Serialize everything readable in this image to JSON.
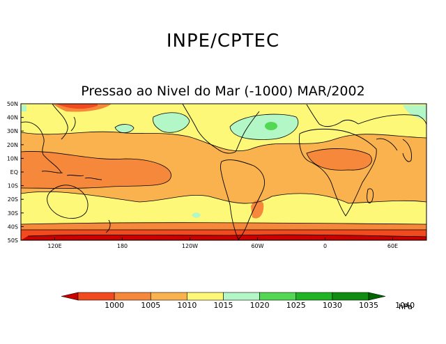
{
  "header": {
    "organization": "INPE/CPTEC",
    "map_title": "Pressao ao Nivel do Mar (-1000) MAR/2002"
  },
  "map": {
    "variable": "Sea level pressure",
    "period": "MAR/2002",
    "lat_labels": [
      "50N",
      "40N",
      "30N",
      "20N",
      "10N",
      "EQ",
      "10S",
      "20S",
      "30S",
      "40S",
      "50S"
    ],
    "lon_labels": [
      "120E",
      "180",
      "120W",
      "60W",
      "0",
      "60E"
    ]
  },
  "colorbar": {
    "unit": "hPa",
    "levels": [
      "1000",
      "1005",
      "1010",
      "1015",
      "1020",
      "1025",
      "1030",
      "1035",
      "1040"
    ],
    "colors": [
      "#c80000",
      "#f04a1e",
      "#f6883c",
      "#f9b24e",
      "#fdf878",
      "#b4f7c6",
      "#52d852",
      "#20b424",
      "#108c10",
      "#006400"
    ]
  }
}
